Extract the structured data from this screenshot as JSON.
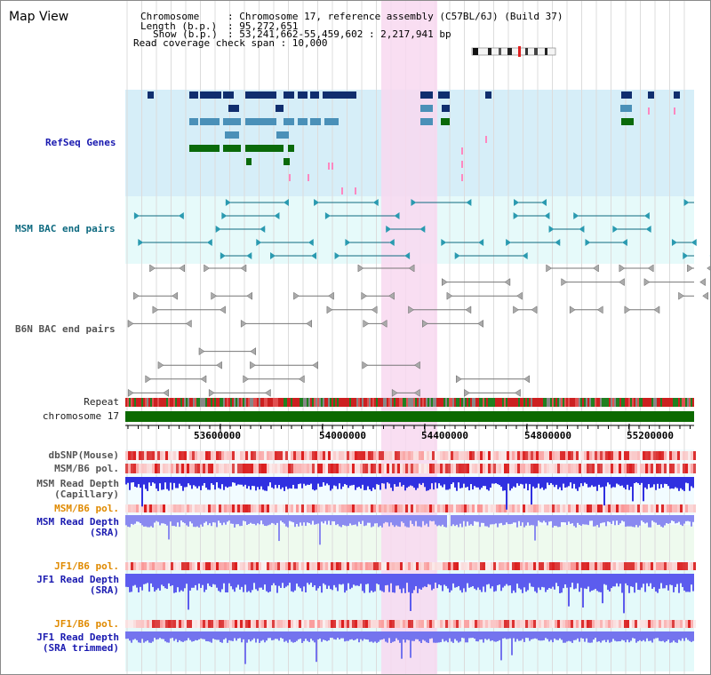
{
  "page": {
    "title": "Map View"
  },
  "info": {
    "chromosome_key": "Chromosome",
    "chromosome_val": ": Chromosome 17, reference assembly (C57BL/6J) (Build 37)",
    "length_key": "Length (b.p.)",
    "length_val": ": 95,272,651",
    "show_key": "Show (b.p.)",
    "show_val": ": 53,241,662-55,459,602 : 2,217,941 bp",
    "coverage": "Read coverage check span : 10,000"
  },
  "tracks": {
    "refseq": "RefSeq Genes",
    "msm_bac": "MSM BAC end pairs",
    "b6n_bac": "B6N BAC end pairs",
    "repeat": "Repeat",
    "chromosome": "chromosome 17",
    "dbsnp": "dbSNP(Mouse)",
    "msm_pol": "MSM/B6 pol.",
    "msm_depth_cap_1": "MSM Read Depth",
    "msm_depth_cap_2": "(Capillary)",
    "msm_pol_2": "MSM/B6 pol.",
    "msm_depth_sra_1": "MSM Read Depth",
    "msm_depth_sra_2": "(SRA)",
    "jf1_pol": "JF1/B6 pol.",
    "jf1_depth_sra_1": "JF1 Read Depth",
    "jf1_depth_sra_2": "(SRA)",
    "jf1_pol_2": "JF1/B6 pol.",
    "jf1_depth_trim_1": "JF1 Read Depth",
    "jf1_depth_trim_2": "(SRA trimmed)"
  },
  "axis": {
    "ticks": [
      "53600000",
      "54000000",
      "54400000",
      "54800000",
      "55200000"
    ]
  },
  "colors": {
    "highlight": "#f8d8f0",
    "refseq_bg": "#d6eef8",
    "bac_bg": "#e6fafa",
    "gene_navy": "#102e6e",
    "gene_steel": "#4a90b8",
    "gene_green": "#0a6a0a",
    "chromosome_bar": "#0c6a00",
    "depth_blue": "#3030e0",
    "depth_light": "#8a8af0"
  }
}
